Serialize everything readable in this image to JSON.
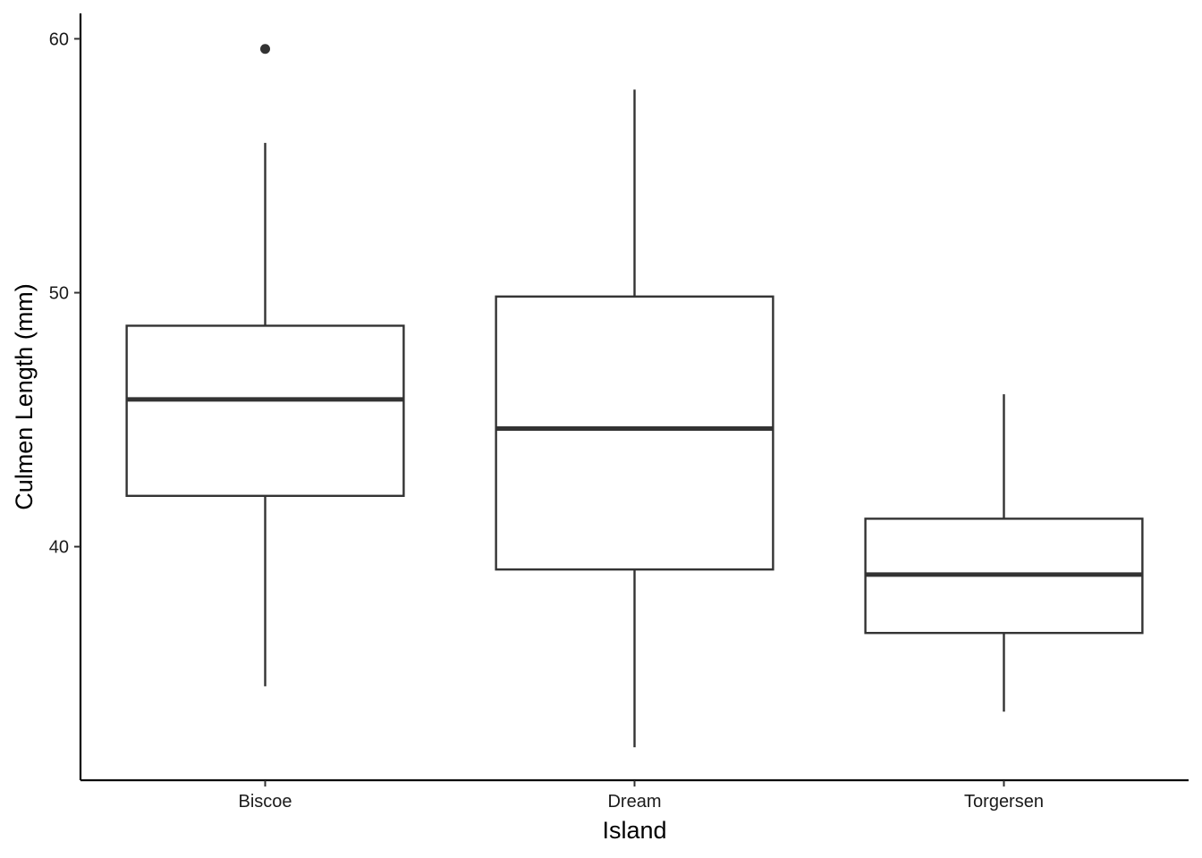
{
  "chart_data": {
    "type": "box",
    "xlabel": "Island",
    "ylabel": "Culmen Length (mm)",
    "ylim": [
      30.8,
      61.0
    ],
    "yticks": [
      40,
      50,
      60
    ],
    "grid": false,
    "legend": "none",
    "colors": {
      "stroke": "#333333",
      "axis": "#000000",
      "fill": "#ffffff"
    },
    "categories": [
      "Biscoe",
      "Dream",
      "Torgersen"
    ],
    "boxes": [
      {
        "category": "Biscoe",
        "min": 34.5,
        "q1": 42.0,
        "median": 45.8,
        "q3": 48.7,
        "max": 55.9,
        "outliers": [
          59.6
        ]
      },
      {
        "category": "Dream",
        "min": 32.1,
        "q1": 39.1,
        "median": 44.65,
        "q3": 49.85,
        "max": 58.0,
        "outliers": []
      },
      {
        "category": "Torgersen",
        "min": 33.5,
        "q1": 36.6,
        "median": 38.9,
        "q3": 41.1,
        "max": 46.0,
        "outliers": []
      }
    ]
  }
}
